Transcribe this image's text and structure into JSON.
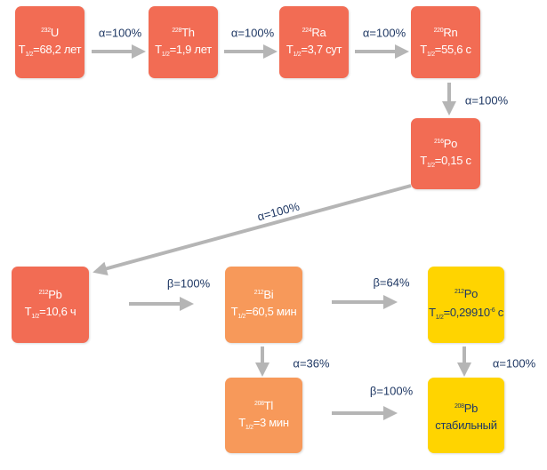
{
  "nodes": [
    {
      "mass": "232",
      "symbol": "U",
      "t": "T",
      "t_sub": "1/2",
      "halflife": "=68,2 лет"
    },
    {
      "mass": "228",
      "symbol": "Th",
      "t": "T",
      "t_sub": "1/2",
      "halflife": "=1,9 лет"
    },
    {
      "mass": "224",
      "symbol": "Ra",
      "t": "T",
      "t_sub": "1/2",
      "halflife": "=3,7 сут"
    },
    {
      "mass": "220",
      "symbol": "Rn",
      "t": "T",
      "t_sub": "1/2",
      "halflife": "=55,6 с"
    },
    {
      "mass": "216",
      "symbol": "Po",
      "t": "T",
      "t_sub": "1/2",
      "halflife": "=0,15 с"
    },
    {
      "mass": "212",
      "symbol": "Pb",
      "t": "T",
      "t_sub": "1/2",
      "halflife": "=10,6 ч"
    },
    {
      "mass": "212",
      "symbol": "Bi",
      "t": "T",
      "t_sub": "1/2",
      "halflife": "=60,5 мин"
    },
    {
      "mass": "212",
      "symbol": "Po",
      "t": "T",
      "t_sub": "1/2",
      "halflife": "=0,29910",
      "exp": "-6",
      "unit": " с"
    },
    {
      "mass": "208",
      "symbol": "Tl",
      "t": "T",
      "t_sub": "1/2",
      "halflife": "=3 мин"
    },
    {
      "mass": "208",
      "symbol": "Pb",
      "status": "стабильный"
    }
  ],
  "edges": [
    {
      "label": "α=100%"
    },
    {
      "label": "α=100%"
    },
    {
      "label": "α=100%"
    },
    {
      "label": "α=100%"
    },
    {
      "label": "α=100%"
    },
    {
      "label": "β=100%"
    },
    {
      "label": "β=64%"
    },
    {
      "label": "α=36%"
    },
    {
      "label": "β=100%"
    },
    {
      "label": "α=100%"
    }
  ]
}
